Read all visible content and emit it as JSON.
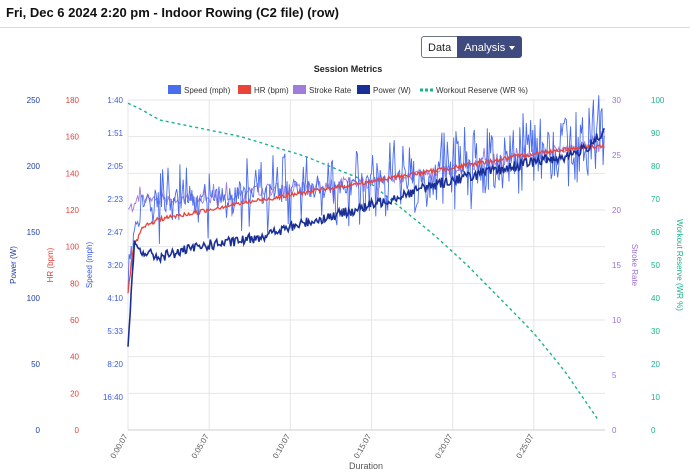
{
  "page": {
    "title": "Fri, Dec 6 2024 2:20 pm - Indoor Rowing (C2 file) (row)"
  },
  "toolbar": {
    "data_label": "Data",
    "analysis_label": "Analysis"
  },
  "chart_data": {
    "type": "line",
    "title": "Session Metrics",
    "xlabel": "Duration",
    "x_ticks": [
      "0:00:07",
      "0:05:07",
      "0:10:07",
      "0:15:07",
      "0:20:07",
      "0:25:07"
    ],
    "x_tick_seconds": [
      7,
      307,
      607,
      907,
      1207,
      1507
    ],
    "x_range_seconds": [
      7,
      1770
    ],
    "grid": true,
    "legend_placement": "top-center",
    "axes": [
      {
        "id": "power",
        "label": "Power (W)",
        "side": "left",
        "range": [
          0,
          250
        ],
        "ticks": [
          "0",
          "50",
          "100",
          "150",
          "200",
          "250"
        ],
        "tick_values": [
          0,
          50,
          100,
          150,
          200,
          250
        ],
        "color": "#1f3ea8"
      },
      {
        "id": "hr",
        "label": "HR (bpm)",
        "side": "left",
        "range": [
          0,
          180
        ],
        "ticks": [
          "0",
          "20",
          "40",
          "60",
          "80",
          "100",
          "120",
          "140",
          "160",
          "180"
        ],
        "tick_values": [
          0,
          20,
          40,
          60,
          80,
          100,
          120,
          140,
          160,
          180
        ],
        "color": "#e0403a"
      },
      {
        "id": "speed",
        "label": "Speed (mph)",
        "side": "left",
        "range": [
          0,
          9
        ],
        "ticks": [
          "16:40",
          "8:20",
          "5:33",
          "4:10",
          "3:20",
          "2:47",
          "2:23",
          "2:05",
          "1:51",
          "1:40"
        ],
        "tick_values": [
          1,
          2,
          3,
          4,
          5,
          6,
          7,
          8,
          9,
          10
        ],
        "color": "#3b5bdb"
      },
      {
        "id": "spm",
        "label": "Stroke Rate",
        "side": "right",
        "range": [
          0,
          30
        ],
        "ticks": [
          "0",
          "5",
          "10",
          "15",
          "20",
          "25",
          "30"
        ],
        "tick_values": [
          0,
          5,
          10,
          15,
          20,
          25,
          30
        ],
        "color": "#9b6fd6"
      },
      {
        "id": "wr",
        "label": "Workout Reserve (WR %)",
        "side": "right",
        "range": [
          0,
          100
        ],
        "ticks": [
          "0",
          "10",
          "20",
          "30",
          "40",
          "50",
          "60",
          "70",
          "80",
          "90",
          "100"
        ],
        "tick_values": [
          0,
          10,
          20,
          30,
          40,
          50,
          60,
          70,
          80,
          90,
          100
        ],
        "color": "#18b48c"
      }
    ],
    "legend": [
      {
        "name": "Speed (mph)",
        "color": "#4a6cf0",
        "style": "box"
      },
      {
        "name": "HR (bpm)",
        "color": "#e8443a",
        "style": "box"
      },
      {
        "name": "Stroke Rate",
        "color": "#a07ddc",
        "style": "box"
      },
      {
        "name": "Power (W)",
        "color": "#1a2f96",
        "style": "box"
      },
      {
        "name": "Workout Reserve (WR %)",
        "color": "#18b48c",
        "style": "dashed"
      }
    ],
    "series": [
      {
        "name": "Power (W)",
        "axis": "power",
        "color": "#1a2f96",
        "x": [
          7,
          30,
          60,
          120,
          180,
          300,
          420,
          540,
          660,
          780,
          900,
          1020,
          1140,
          1260,
          1380,
          1500,
          1620,
          1700,
          1740,
          1770
        ],
        "y": [
          60,
          140,
          135,
          131,
          134,
          140,
          143,
          149,
          157,
          163,
          170,
          178,
          186,
          192,
          197,
          203,
          207,
          213,
          222,
          225
        ]
      },
      {
        "name": "HR (bpm)",
        "axis": "hr",
        "color": "#e8443a",
        "x": [
          7,
          25,
          60,
          120,
          240,
          360,
          480,
          600,
          720,
          840,
          960,
          1080,
          1200,
          1320,
          1440,
          1560,
          1680,
          1770
        ],
        "y": [
          75,
          98,
          110,
          115,
          118,
          122,
          125,
          128,
          131,
          134,
          137,
          140,
          143,
          146,
          149,
          152,
          154,
          155
        ]
      },
      {
        "name": "Speed (mph)",
        "axis": "speed",
        "color": "#4a6cf0",
        "x": [
          7,
          60,
          180,
          300,
          420,
          540,
          660,
          780,
          900,
          1020,
          1140,
          1260,
          1380,
          1500,
          1620,
          1700,
          1770
        ],
        "y": [
          5.0,
          6.9,
          7.0,
          7.1,
          7.2,
          7.2,
          7.3,
          7.4,
          7.5,
          7.6,
          7.8,
          8.0,
          8.2,
          8.3,
          8.5,
          8.7,
          8.9
        ]
      },
      {
        "name": "Stroke Rate",
        "axis": "spm",
        "color": "#a07ddc",
        "x": [
          7,
          60,
          180,
          300,
          420,
          540,
          660,
          780,
          900,
          1020,
          1140,
          1260,
          1380,
          1500,
          1620,
          1700,
          1770
        ],
        "y": [
          20,
          21,
          21,
          21,
          21.5,
          22,
          22,
          22.5,
          22.5,
          23,
          23.5,
          24,
          24.5,
          25,
          25.5,
          26,
          27
        ]
      },
      {
        "name": "Workout Reserve (WR %)",
        "axis": "wr",
        "color": "#18b48c",
        "style": "dashed",
        "x": [
          7,
          60,
          120,
          300,
          420,
          540,
          660,
          780,
          900,
          960,
          1020,
          1140,
          1260,
          1380,
          1500,
          1620,
          1770
        ],
        "y": [
          99,
          97,
          94,
          91,
          89,
          86,
          83,
          79,
          75,
          71,
          67,
          59,
          50,
          40,
          30,
          18,
          0
        ]
      }
    ]
  }
}
